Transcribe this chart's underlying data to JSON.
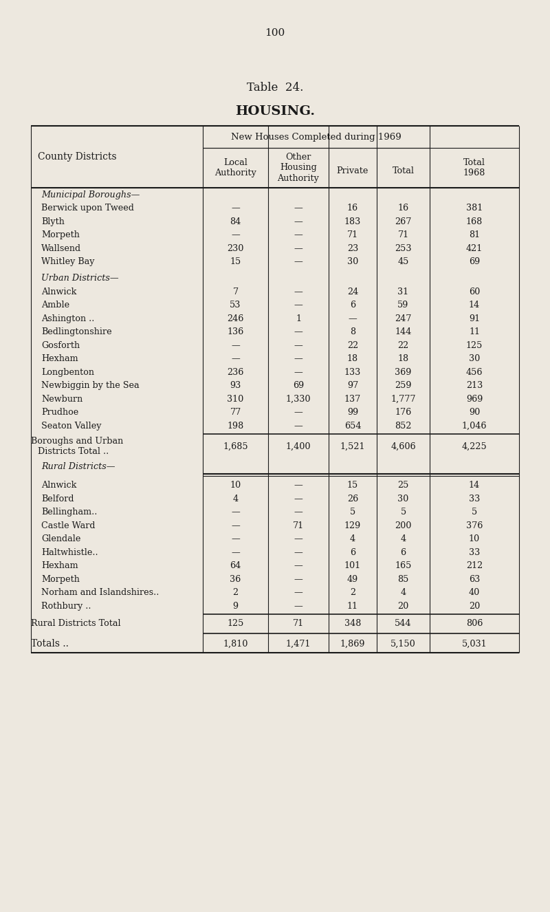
{
  "page_number": "100",
  "title1": "Table  24.",
  "title2": "HOUSING.",
  "col_header_span": "New Houses Completed during 1969",
  "bg_color": "#ede8df",
  "text_color": "#1a1a1a",
  "line_color": "#1a1a1a",
  "sections": [
    {
      "section_header": "Municipal Boroughs—",
      "italic": true,
      "indent": 60,
      "rows": [
        {
          "label": "Berwick upon Tweed",
          "local": "—",
          "other": "—",
          "private": "16",
          "total": "16",
          "total1968": "381"
        },
        {
          "label": "Blyth",
          "local": "84",
          "other": "—",
          "private": "183",
          "total": "267",
          "total1968": "168"
        },
        {
          "label": "Morpeth",
          "local": "—",
          "other": "—",
          "private": "71",
          "total": "71",
          "total1968": "81"
        },
        {
          "label": "Wallsend",
          "local": "230",
          "other": "—",
          "private": "23",
          "total": "253",
          "total1968": "421"
        },
        {
          "label": "Whitley Bay",
          "local": "15",
          "other": "—",
          "private": "30",
          "total": "45",
          "total1968": "69"
        }
      ]
    },
    {
      "section_header": "Urban Districts—",
      "italic": true,
      "indent": 60,
      "rows": [
        {
          "label": "Alnwick",
          "local": "7",
          "other": "—",
          "private": "24",
          "total": "31",
          "total1968": "60"
        },
        {
          "label": "Amble",
          "local": "53",
          "other": "—",
          "private": "6",
          "total": "59",
          "total1968": "14"
        },
        {
          "label": "Ashington ..",
          "local": "246",
          "other": "1",
          "private": "—",
          "total": "247",
          "total1968": "91"
        },
        {
          "label": "Bedlingtonshire",
          "local": "136",
          "other": "—",
          "private": "8",
          "total": "144",
          "total1968": "11"
        },
        {
          "label": "Gosforth",
          "local": "—",
          "other": "—",
          "private": "22",
          "total": "22",
          "total1968": "125"
        },
        {
          "label": "Hexham",
          "local": "—",
          "other": "—",
          "private": "18",
          "total": "18",
          "total1968": "30"
        },
        {
          "label": "Longbenton",
          "local": "236",
          "other": "—",
          "private": "133",
          "total": "369",
          "total1968": "456"
        },
        {
          "label": "Newbiggin by the Sea",
          "local": "93",
          "other": "69",
          "private": "97",
          "total": "259",
          "total1968": "213"
        },
        {
          "label": "Newburn",
          "local": "310",
          "other": "1,330",
          "private": "137",
          "total": "1,777",
          "total1968": "969"
        },
        {
          "label": "Prudhoe",
          "local": "77",
          "other": "—",
          "private": "99",
          "total": "176",
          "total1968": "90"
        },
        {
          "label": "Seaton Valley",
          "local": "198",
          "other": "—",
          "private": "654",
          "total": "852",
          "total1968": "1,046"
        }
      ]
    },
    {
      "section_header": "Boroughs and Urban\nDistricts Total ..",
      "italic": false,
      "indent": 45,
      "is_subtotal": true,
      "rows": [
        {
          "label": "",
          "local": "1,685",
          "other": "1,400",
          "private": "1,521",
          "total": "4,606",
          "total1968": "4,225"
        }
      ]
    },
    {
      "section_header": "Rural Districts—",
      "italic": true,
      "indent": 60,
      "rows": [
        {
          "label": "Alnwick",
          "local": "10",
          "other": "—",
          "private": "15",
          "total": "25",
          "total1968": "14"
        },
        {
          "label": "Belford",
          "local": "4",
          "other": "—",
          "private": "26",
          "total": "30",
          "total1968": "33"
        },
        {
          "label": "Bellingham..",
          "local": "—",
          "other": "—",
          "private": "5",
          "total": "5",
          "total1968": "5"
        },
        {
          "label": "Castle Ward",
          "local": "—",
          "other": "71",
          "private": "129",
          "total": "200",
          "total1968": "376"
        },
        {
          "label": "Glendale",
          "local": "—",
          "other": "—",
          "private": "4",
          "total": "4",
          "total1968": "10"
        },
        {
          "label": "Haltwhistle..",
          "local": "—",
          "other": "—",
          "private": "6",
          "total": "6",
          "total1968": "33"
        },
        {
          "label": "Hexham",
          "local": "64",
          "other": "—",
          "private": "101",
          "total": "165",
          "total1968": "212"
        },
        {
          "label": "Morpeth",
          "local": "36",
          "other": "—",
          "private": "49",
          "total": "85",
          "total1968": "63"
        },
        {
          "label": "Norham and Islandshires..",
          "local": "2",
          "other": "—",
          "private": "2",
          "total": "4",
          "total1968": "40"
        },
        {
          "label": "Rothbury ..",
          "local": "9",
          "other": "—",
          "private": "11",
          "total": "20",
          "total1968": "20"
        }
      ]
    },
    {
      "section_header": "Rural Districts Total",
      "italic": false,
      "indent": 45,
      "is_subtotal": true,
      "rows": [
        {
          "label": "",
          "local": "125",
          "other": "71",
          "private": "348",
          "total": "544",
          "total1968": "806"
        }
      ]
    },
    {
      "section_header": "Totals ..",
      "italic": false,
      "indent": 45,
      "is_total": true,
      "rows": [
        {
          "label": "",
          "local": "1,810",
          "other": "1,471",
          "private": "1,869",
          "total": "5,150",
          "total1968": "5,031"
        }
      ]
    }
  ]
}
